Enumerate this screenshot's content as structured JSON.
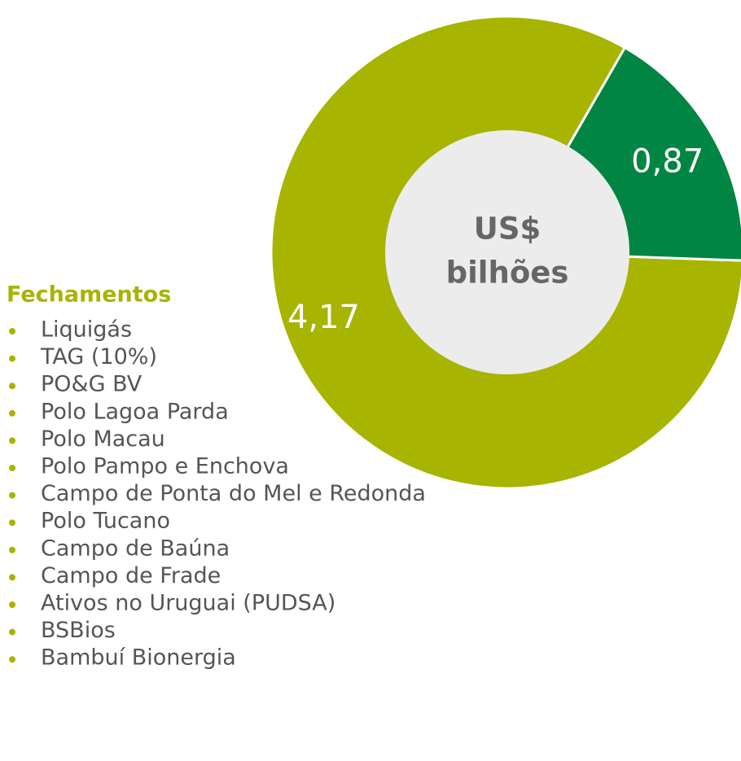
{
  "chart_data": {
    "type": "donut",
    "values": [
      4.17,
      0.87
    ],
    "value_labels": [
      "4,17",
      "0,87"
    ],
    "colors": [
      "#a7b400",
      "#008542"
    ],
    "center_label": [
      "US$",
      "bilhões"
    ],
    "list": {
      "title": "Fechamentos",
      "items": [
        "Liquigás",
        "TAG (10%)",
        "PO&G BV",
        "Polo Lagoa Parda",
        "Polo Macau",
        "Polo Pampo e Enchova",
        "Campo de Ponta do Mel e Redonda",
        "Polo Tucano",
        "Campo de Baúna",
        "Campo de Frade",
        "Ativos no Uruguai (PUDSA)",
        "BSBios",
        "Bambuí Bionergia"
      ]
    }
  }
}
